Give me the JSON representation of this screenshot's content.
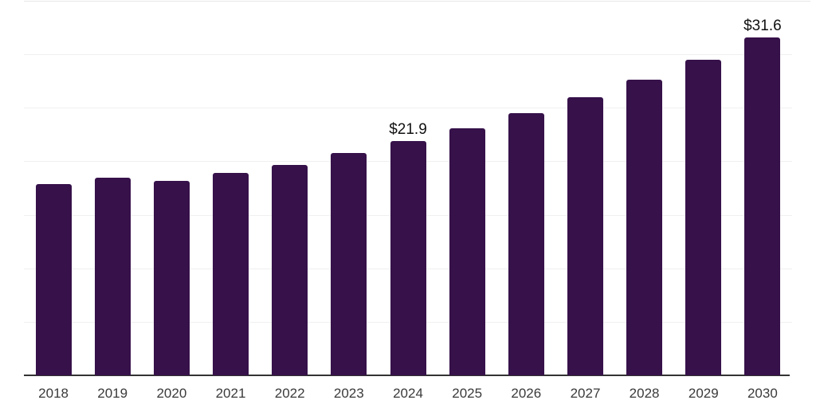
{
  "chart_data": {
    "type": "bar",
    "title": "",
    "xlabel": "",
    "ylabel": "",
    "categories": [
      "2018",
      "2019",
      "2020",
      "2021",
      "2022",
      "2023",
      "2024",
      "2025",
      "2026",
      "2027",
      "2028",
      "2029",
      "2030"
    ],
    "values": [
      17.9,
      18.5,
      18.2,
      18.9,
      19.7,
      20.8,
      21.9,
      23.1,
      24.5,
      26.0,
      27.6,
      29.5,
      31.6
    ],
    "annotations": [
      {
        "category": "2024",
        "text": "$21.9"
      },
      {
        "category": "2030",
        "text": "$31.6"
      }
    ],
    "ylim": [
      0,
      35
    ],
    "grid_step": 5,
    "grid": "horizontal-only",
    "y_tick_labels_visible": false,
    "legend": "none",
    "colors": {
      "bar": "#36114A",
      "gridline": "#f0f0f0",
      "top_gridline": "#e8e8e8",
      "axis": "#333333",
      "tick_label": "#3a3a3a",
      "value_label": "#111111",
      "background": "#ffffff"
    }
  }
}
